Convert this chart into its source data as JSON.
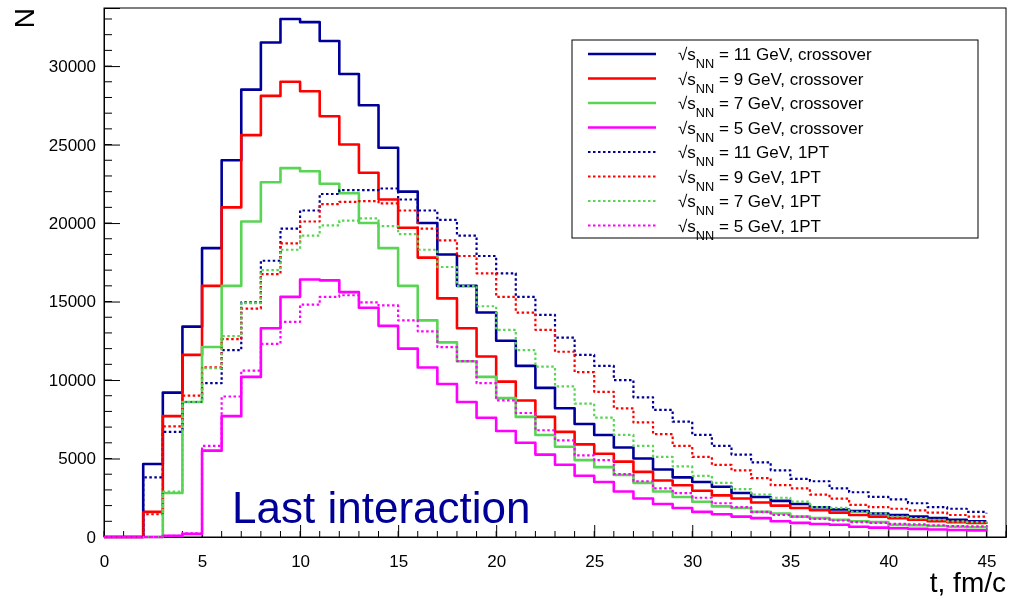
{
  "chart_data": {
    "type": "step",
    "xlabel": "t, fm/c",
    "ylabel": "N",
    "annotations": [
      "Last interaction"
    ],
    "x": [
      0,
      1,
      2,
      3,
      4,
      5,
      6,
      7,
      8,
      9,
      10,
      11,
      12,
      13,
      14,
      15,
      16,
      17,
      18,
      19,
      20,
      21,
      22,
      23,
      24,
      25,
      26,
      27,
      28,
      29,
      30,
      31,
      32,
      33,
      34,
      35,
      36,
      37,
      38,
      39,
      40,
      41,
      42,
      43,
      44,
      45
    ],
    "xlim": [
      0,
      46
    ],
    "xticks": [
      0,
      5,
      10,
      15,
      20,
      25,
      30,
      35,
      40,
      45
    ],
    "ylim": [
      0,
      33700
    ],
    "yticks": [
      0,
      5000,
      10000,
      15000,
      20000,
      25000,
      30000
    ],
    "grid": false,
    "legend": "top right",
    "marker": "none",
    "series": [
      {
        "name": "√s$_{NN}$ = 11 GeV, crossover",
        "color": "#000099",
        "line_style": "solid",
        "values": [
          0,
          0,
          4650,
          9200,
          13400,
          18400,
          24000,
          28500,
          31500,
          33000,
          32800,
          31600,
          29500,
          27500,
          24800,
          22000,
          20000,
          18000,
          16000,
          14300,
          12500,
          10900,
          9500,
          8200,
          7200,
          6500,
          5700,
          5000,
          4300,
          3800,
          3500,
          3200,
          2800,
          2550,
          2300,
          2100,
          1900,
          1750,
          1650,
          1500,
          1400,
          1300,
          1200,
          1100,
          1000,
          1000
        ]
      },
      {
        "name": "√s$_{NN}$ = 9 GeV, crossover",
        "color": "#ff0000",
        "line_style": "solid",
        "values": [
          0,
          0,
          1600,
          7700,
          11600,
          16000,
          21000,
          25600,
          28100,
          29000,
          28400,
          26800,
          25000,
          23200,
          21500,
          19700,
          17800,
          15200,
          13300,
          11500,
          9900,
          8700,
          7650,
          6700,
          5900,
          5300,
          4800,
          4150,
          3600,
          3300,
          2950,
          2650,
          2450,
          2200,
          2000,
          1850,
          1700,
          1550,
          1400,
          1300,
          1200,
          1100,
          1000,
          950,
          900,
          850
        ]
      },
      {
        "name": "√s$_{NN}$ = 7 GeV, crossover",
        "color": "#59d454",
        "line_style": "solid",
        "values": [
          null,
          null,
          0,
          2800,
          8600,
          12100,
          16000,
          20100,
          22600,
          23500,
          23300,
          22500,
          21900,
          20000,
          18400,
          16000,
          13800,
          12400,
          11200,
          10200,
          8850,
          7650,
          6500,
          5750,
          4900,
          4450,
          3950,
          3450,
          2900,
          2550,
          2250,
          1950,
          1850,
          1600,
          1500,
          1300,
          1200,
          1100,
          1000,
          950,
          770,
          750,
          700,
          650,
          620,
          600
        ]
      },
      {
        "name": "√s$_{NN}$ = 5 GeV, crossover",
        "color": "#ff00ff",
        "line_style": "solid",
        "values": [
          0,
          0,
          0,
          80,
          200,
          5500,
          7700,
          10200,
          13300,
          15300,
          16400,
          16350,
          15600,
          14600,
          13450,
          12000,
          10800,
          9750,
          8600,
          7600,
          6750,
          6000,
          5250,
          4600,
          3900,
          3500,
          2900,
          2450,
          2100,
          1850,
          1600,
          1450,
          1300,
          1200,
          1000,
          900,
          830,
          780,
          650,
          600,
          560,
          520,
          480,
          450,
          420,
          400
        ]
      },
      {
        "name": "√s$_{NN}$ = 11 GeV, 1PT",
        "color": "#000099",
        "line_style": "dotted",
        "values": [
          0,
          0,
          3800,
          6700,
          8600,
          9800,
          11900,
          14950,
          17600,
          19650,
          20800,
          21850,
          22100,
          22100,
          22200,
          21500,
          20800,
          20200,
          19200,
          17900,
          16800,
          15300,
          14150,
          12700,
          11600,
          10900,
          10000,
          8900,
          8100,
          7350,
          6500,
          5800,
          5250,
          4750,
          4250,
          3700,
          3550,
          3100,
          2850,
          2550,
          2400,
          2150,
          1900,
          1800,
          1600,
          1500
        ]
      },
      {
        "name": "√s$_{NN}$ = 9 GeV, 1PT",
        "color": "#ff0000",
        "line_style": "dotted",
        "values": [
          0,
          0,
          1450,
          7050,
          9000,
          10800,
          12600,
          14550,
          16750,
          18700,
          20100,
          21200,
          21350,
          21400,
          21250,
          20800,
          19650,
          18900,
          17900,
          16800,
          15300,
          14300,
          13200,
          11800,
          10500,
          9250,
          8200,
          7300,
          6550,
          5800,
          5100,
          4600,
          4250,
          3750,
          3300,
          3100,
          2700,
          2450,
          2050,
          1900,
          1800,
          1700,
          1550,
          1400,
          1300,
          1250
        ]
      },
      {
        "name": "√s$_{NN}$ = 7 GeV, 1PT",
        "color": "#59d454",
        "line_style": "dotted",
        "values": [
          null,
          null,
          0,
          2900,
          8600,
          10750,
          12800,
          14900,
          17000,
          18300,
          19200,
          19850,
          20150,
          20300,
          19800,
          19300,
          18300,
          17200,
          16000,
          14700,
          13200,
          11900,
          10850,
          9600,
          8500,
          7600,
          6500,
          5800,
          5100,
          4500,
          3900,
          3450,
          3050,
          2700,
          2500,
          2250,
          1900,
          1850,
          1600,
          1500,
          1300,
          1200,
          1100,
          1000,
          950,
          900
        ]
      },
      {
        "name": "√s$_{NN}$ = 5 GeV, 1PT",
        "color": "#ff00ff",
        "line_style": "dotted",
        "values": [
          0,
          0,
          0,
          80,
          230,
          5800,
          8950,
          10600,
          12300,
          13700,
          14800,
          15300,
          15400,
          14950,
          14750,
          13800,
          13100,
          12100,
          11200,
          9800,
          8700,
          7900,
          6800,
          6150,
          5200,
          4900,
          4000,
          3550,
          3100,
          2800,
          2500,
          2150,
          1900,
          1600,
          1400,
          1300,
          1150,
          1050,
          950,
          900,
          830,
          800,
          750,
          700,
          680,
          650
        ]
      }
    ]
  }
}
